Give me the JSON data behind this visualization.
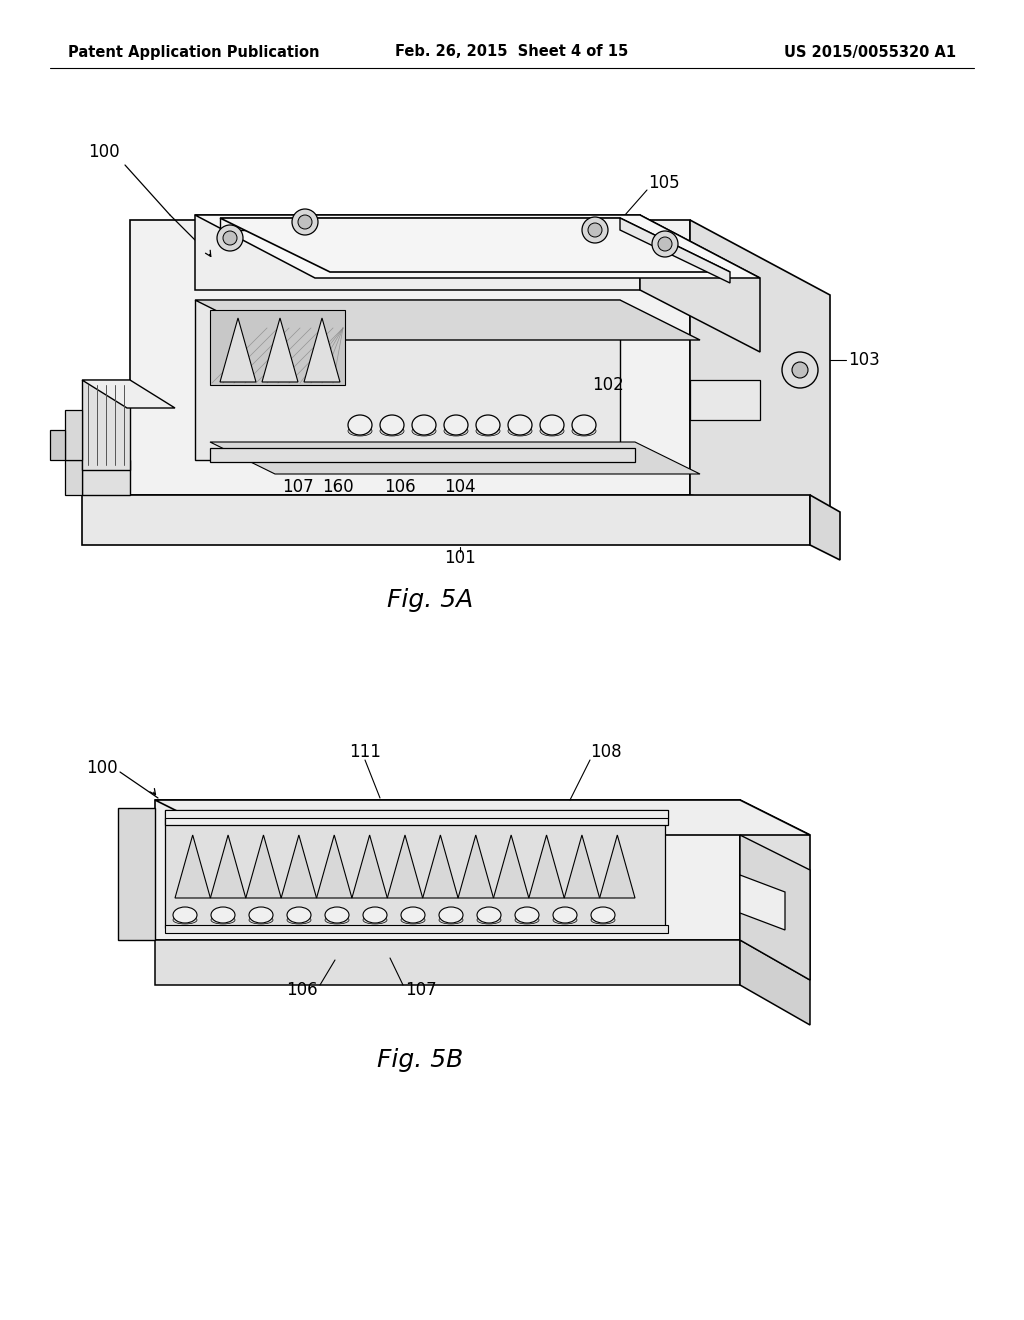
{
  "background_color": "#ffffff",
  "header": {
    "left": "Patent Application Publication",
    "center": "Feb. 26, 2015  Sheet 4 of 15",
    "right": "US 2015/0055320 A1",
    "font_size": 10.5
  },
  "label_fontsize": 12,
  "caption_fontsize": 18
}
